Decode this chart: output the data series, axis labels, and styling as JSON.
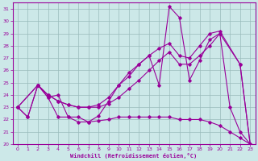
{
  "xlabel": "Windchill (Refroidissement éolien,°C)",
  "background_color": "#cce8e8",
  "line_color": "#990099",
  "grid_color": "#99bbbb",
  "xlim": [
    -0.5,
    23.5
  ],
  "ylim": [
    20,
    31.5
  ],
  "xticks": [
    0,
    1,
    2,
    3,
    4,
    5,
    6,
    7,
    8,
    9,
    10,
    11,
    12,
    13,
    14,
    15,
    16,
    17,
    18,
    19,
    20,
    21,
    22,
    23
  ],
  "yticks": [
    20,
    21,
    22,
    23,
    24,
    25,
    26,
    27,
    28,
    29,
    30,
    31
  ],
  "line1_x": [
    0,
    1,
    2,
    3,
    4,
    5,
    6,
    7,
    8,
    9,
    10,
    11,
    12,
    13,
    14,
    15,
    16,
    17,
    18,
    19,
    20,
    21,
    22,
    23
  ],
  "line1_y": [
    23,
    22.2,
    24.8,
    23.8,
    22.2,
    22.2,
    21.8,
    21.8,
    21.9,
    22.0,
    22.2,
    22.2,
    22.2,
    22.2,
    22.2,
    22.2,
    22.0,
    22.0,
    22.0,
    21.8,
    21.5,
    21.0,
    20.5,
    20.0
  ],
  "line2_x": [
    0,
    1,
    2,
    3,
    4,
    5,
    6,
    7,
    8,
    9,
    10,
    11,
    12,
    13,
    14,
    15,
    16,
    17,
    18,
    19,
    20,
    21,
    22,
    23
  ],
  "line2_y": [
    23,
    22.2,
    24.8,
    23.8,
    24.0,
    22.2,
    22.2,
    21.8,
    22.3,
    23.5,
    24.8,
    25.5,
    26.5,
    27.2,
    24.8,
    31.2,
    30.3,
    25.2,
    26.8,
    28.5,
    29.0,
    23.0,
    21.0,
    20.0
  ],
  "line3_x": [
    0,
    2,
    3,
    4,
    5,
    6,
    7,
    8,
    9,
    10,
    11,
    12,
    13,
    14,
    15,
    16,
    17,
    18,
    19,
    20,
    22,
    23
  ],
  "line3_y": [
    23,
    24.8,
    24.0,
    23.5,
    23.2,
    23.0,
    23.0,
    23.0,
    23.3,
    23.8,
    24.5,
    25.2,
    26.0,
    26.8,
    27.5,
    26.5,
    26.5,
    27.2,
    28.0,
    29.0,
    26.5,
    20.0
  ],
  "line4_x": [
    0,
    2,
    3,
    4,
    5,
    6,
    7,
    8,
    9,
    10,
    11,
    12,
    13,
    14,
    15,
    16,
    17,
    18,
    19,
    20,
    22,
    23
  ],
  "line4_y": [
    23,
    24.8,
    24.0,
    23.5,
    23.2,
    23.0,
    23.0,
    23.2,
    23.8,
    24.8,
    25.8,
    26.5,
    27.2,
    27.8,
    28.2,
    27.2,
    27.0,
    28.0,
    29.0,
    29.2,
    26.5,
    20.0
  ]
}
